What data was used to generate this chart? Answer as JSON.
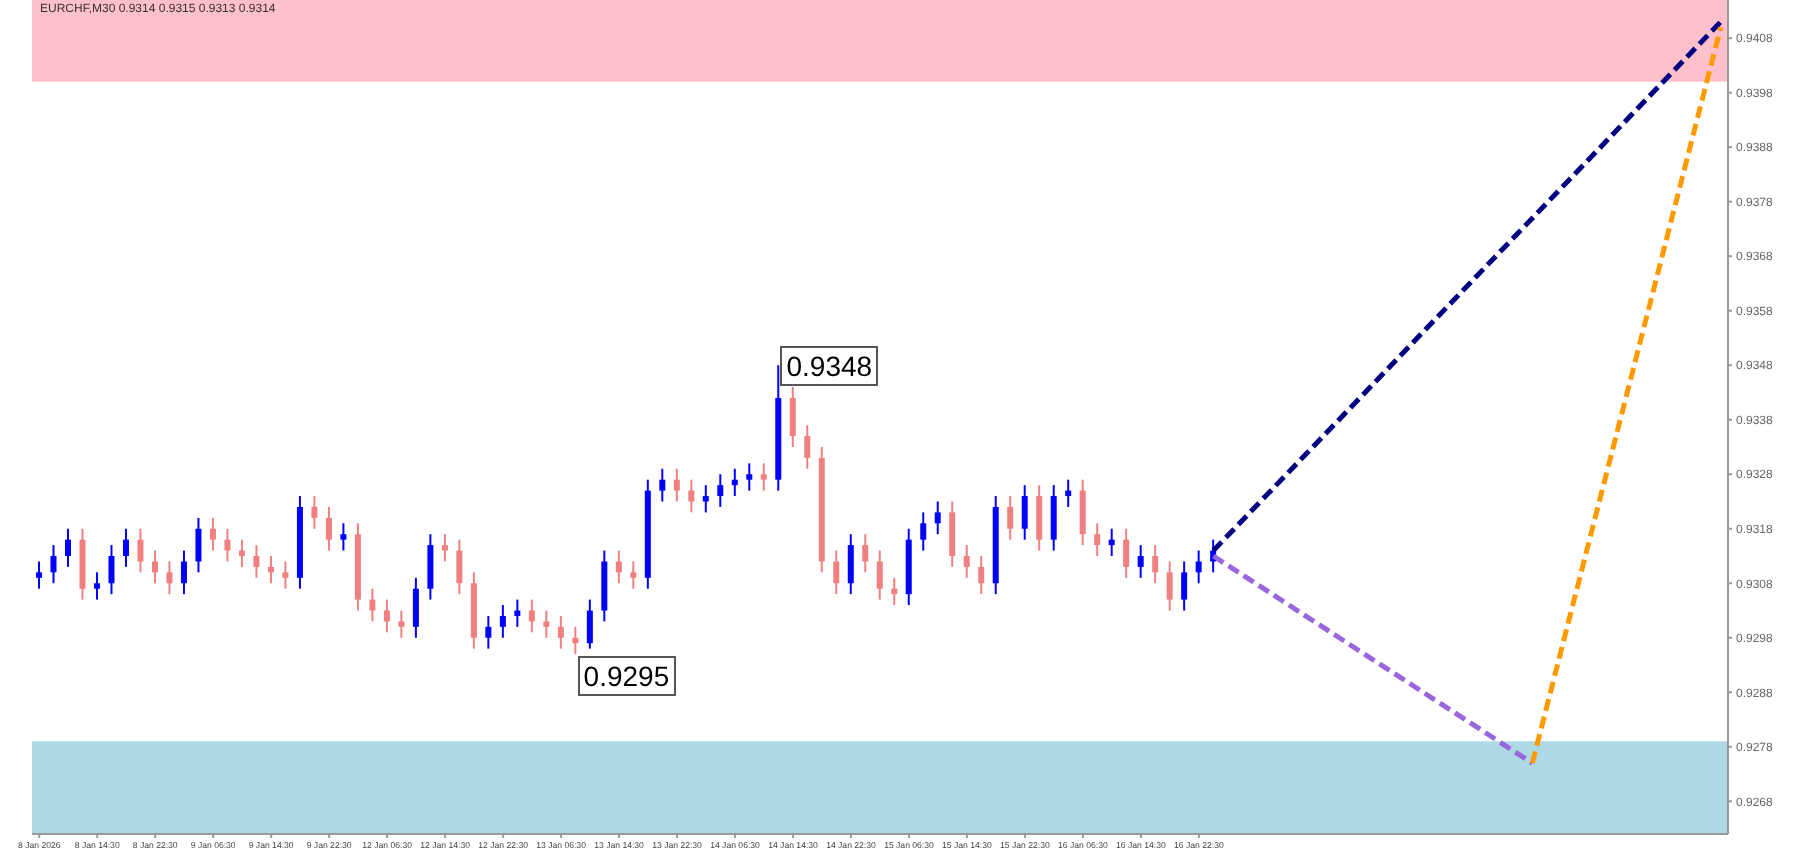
{
  "chart_data": {
    "type": "candlestick",
    "title": "EURCHF,M30  0.9314 0.9315 0.9313 0.9314",
    "categories": [
      "8 Jan 2026",
      null,
      null,
      null,
      "8 Jan 14:30",
      null,
      null,
      null,
      "8 Jan 22:30",
      null,
      null,
      null,
      "9 Jan 06:30",
      null,
      null,
      null,
      "9 Jan 14:30",
      null,
      null,
      null,
      "9 Jan 22:30",
      null,
      null,
      null,
      "12 Jan 06:30",
      null,
      null,
      null,
      "12 Jan 14:30",
      null,
      null,
      null,
      "12 Jan 22:30",
      null,
      null,
      null,
      "13 Jan 06:30",
      null,
      null,
      null,
      "13 Jan 14:30",
      null,
      null,
      null,
      "13 Jan 22:30",
      null,
      null,
      null,
      "14 Jan 06:30",
      null,
      null,
      null,
      "14 Jan 14:30",
      null,
      null,
      null,
      "14 Jan 22:30",
      null,
      null,
      null,
      "15 Jan 06:30",
      null,
      null,
      null,
      "15 Jan 14:30",
      null,
      null,
      null,
      "15 Jan 22:30",
      null,
      null,
      null,
      "16 Jan 06:30",
      null,
      null,
      null,
      "16 Jan 14:30",
      null,
      null,
      null,
      "16 Jan 22:30",
      null,
      null,
      null,
      null,
      null,
      null,
      null,
      null,
      null,
      null,
      null,
      null,
      null,
      null,
      null,
      null,
      null,
      null,
      null,
      null,
      null,
      null,
      null,
      null,
      null,
      null,
      null,
      null,
      null,
      null,
      null,
      null,
      null,
      null,
      null,
      null
    ],
    "ohlc": [
      [
        0.9309,
        0.9312,
        0.9307,
        0.931
      ],
      [
        0.931,
        0.9315,
        0.9308,
        0.9313
      ],
      [
        0.9313,
        0.9318,
        0.9311,
        0.9316
      ],
      [
        0.9316,
        0.9318,
        0.9305,
        0.9307
      ],
      [
        0.9307,
        0.931,
        0.9305,
        0.9308
      ],
      [
        0.9308,
        0.9315,
        0.9306,
        0.9313
      ],
      [
        0.9313,
        0.9318,
        0.9311,
        0.9316
      ],
      [
        0.9316,
        0.9318,
        0.931,
        0.9312
      ],
      [
        0.9312,
        0.9314,
        0.9308,
        0.931
      ],
      [
        0.931,
        0.9312,
        0.9306,
        0.9308
      ],
      [
        0.9308,
        0.9314,
        0.9306,
        0.9312
      ],
      [
        0.9312,
        0.932,
        0.931,
        0.9318
      ],
      [
        0.9318,
        0.932,
        0.9314,
        0.9316
      ],
      [
        0.9316,
        0.9318,
        0.9312,
        0.9314
      ],
      [
        0.9314,
        0.9316,
        0.9311,
        0.9313
      ],
      [
        0.9313,
        0.9315,
        0.9309,
        0.9311
      ],
      [
        0.9311,
        0.9313,
        0.9308,
        0.931
      ],
      [
        0.931,
        0.9312,
        0.9307,
        0.9309
      ],
      [
        0.9309,
        0.9324,
        0.9307,
        0.9322
      ],
      [
        0.9322,
        0.9324,
        0.9318,
        0.932
      ],
      [
        0.932,
        0.9322,
        0.9314,
        0.9316
      ],
      [
        0.9316,
        0.9319,
        0.9314,
        0.9317
      ],
      [
        0.9317,
        0.9319,
        0.9303,
        0.9305
      ],
      [
        0.9305,
        0.9307,
        0.9301,
        0.9303
      ],
      [
        0.9303,
        0.9305,
        0.9299,
        0.9301
      ],
      [
        0.9301,
        0.9303,
        0.9298,
        0.93
      ],
      [
        0.93,
        0.9309,
        0.9298,
        0.9307
      ],
      [
        0.9307,
        0.9317,
        0.9305,
        0.9315
      ],
      [
        0.9315,
        0.9317,
        0.9312,
        0.9314
      ],
      [
        0.9314,
        0.9316,
        0.9306,
        0.9308
      ],
      [
        0.9308,
        0.931,
        0.9296,
        0.9298
      ],
      [
        0.9298,
        0.9302,
        0.9296,
        0.93
      ],
      [
        0.93,
        0.9304,
        0.9298,
        0.9302
      ],
      [
        0.9302,
        0.9305,
        0.93,
        0.9303
      ],
      [
        0.9303,
        0.9305,
        0.9299,
        0.9301
      ],
      [
        0.9301,
        0.9303,
        0.9298,
        0.93
      ],
      [
        0.93,
        0.9302,
        0.9296,
        0.9298
      ],
      [
        0.9298,
        0.93,
        0.9295,
        0.9297
      ],
      [
        0.9297,
        0.9305,
        0.9296,
        0.9303
      ],
      [
        0.9303,
        0.9314,
        0.9301,
        0.9312
      ],
      [
        0.9312,
        0.9314,
        0.9308,
        0.931
      ],
      [
        0.931,
        0.9312,
        0.9307,
        0.9309
      ],
      [
        0.9309,
        0.9327,
        0.9307,
        0.9325
      ],
      [
        0.9325,
        0.9329,
        0.9323,
        0.9327
      ],
      [
        0.9327,
        0.9329,
        0.9323,
        0.9325
      ],
      [
        0.9325,
        0.9327,
        0.9321,
        0.9323
      ],
      [
        0.9323,
        0.9326,
        0.9321,
        0.9324
      ],
      [
        0.9324,
        0.9328,
        0.9322,
        0.9326
      ],
      [
        0.9326,
        0.9329,
        0.9324,
        0.9327
      ],
      [
        0.9327,
        0.933,
        0.9325,
        0.9328
      ],
      [
        0.9328,
        0.933,
        0.9325,
        0.9327
      ],
      [
        0.9327,
        0.9348,
        0.9325,
        0.9342
      ],
      [
        0.9342,
        0.9344,
        0.9333,
        0.9335
      ],
      [
        0.9335,
        0.9337,
        0.9329,
        0.9331
      ],
      [
        0.9331,
        0.9333,
        0.931,
        0.9312
      ],
      [
        0.9312,
        0.9314,
        0.9306,
        0.9308
      ],
      [
        0.9308,
        0.9317,
        0.9306,
        0.9315
      ],
      [
        0.9315,
        0.9317,
        0.931,
        0.9312
      ],
      [
        0.9312,
        0.9314,
        0.9305,
        0.9307
      ],
      [
        0.9307,
        0.9309,
        0.9304,
        0.9306
      ],
      [
        0.9306,
        0.9318,
        0.9304,
        0.9316
      ],
      [
        0.9316,
        0.9321,
        0.9314,
        0.9319
      ],
      [
        0.9319,
        0.9323,
        0.9317,
        0.9321
      ],
      [
        0.9321,
        0.9323,
        0.9311,
        0.9313
      ],
      [
        0.9313,
        0.9315,
        0.9309,
        0.9311
      ],
      [
        0.9311,
        0.9313,
        0.9306,
        0.9308
      ],
      [
        0.9308,
        0.9324,
        0.9306,
        0.9322
      ],
      [
        0.9322,
        0.9324,
        0.9316,
        0.9318
      ],
      [
        0.9318,
        0.9326,
        0.9316,
        0.9324
      ],
      [
        0.9324,
        0.9326,
        0.9314,
        0.9316
      ],
      [
        0.9316,
        0.9326,
        0.9314,
        0.9324
      ],
      [
        0.9324,
        0.9327,
        0.9322,
        0.9325
      ],
      [
        0.9325,
        0.9327,
        0.9315,
        0.9317
      ],
      [
        0.9317,
        0.9319,
        0.9313,
        0.9315
      ],
      [
        0.9315,
        0.9318,
        0.9313,
        0.9316
      ],
      [
        0.9316,
        0.9318,
        0.9309,
        0.9311
      ],
      [
        0.9311,
        0.9315,
        0.9309,
        0.9313
      ],
      [
        0.9313,
        0.9315,
        0.9308,
        0.931
      ],
      [
        0.931,
        0.9312,
        0.9303,
        0.9305
      ],
      [
        0.9305,
        0.9312,
        0.9303,
        0.931
      ],
      [
        0.931,
        0.9314,
        0.9308,
        0.9312
      ],
      [
        0.9312,
        0.9316,
        0.931,
        0.9314
      ],
      null,
      null,
      null,
      null,
      null,
      null,
      null,
      null,
      null,
      null,
      null,
      null,
      null,
      null,
      null,
      null,
      null,
      null,
      null,
      null,
      null,
      null,
      null,
      null,
      null,
      null,
      null,
      null,
      null,
      null,
      null,
      null,
      null,
      null,
      null
    ],
    "colors": [
      "#0000ff",
      "#0000ff",
      "#0000ff",
      "#f08080",
      "#0000ff",
      "#0000ff",
      "#0000ff",
      "#f08080",
      "#f08080",
      "#f08080",
      "#0000ff",
      "#0000ff",
      "#f08080",
      "#f08080",
      "#f08080",
      "#f08080",
      "#f08080",
      "#f08080",
      "#0000ff",
      "#f08080",
      "#f08080",
      "#0000ff",
      "#f08080",
      "#f08080",
      "#f08080",
      "#f08080",
      "#0000ff",
      "#0000ff",
      "#f08080",
      "#f08080",
      "#f08080",
      "#0000ff",
      "#0000ff",
      "#0000ff",
      "#f08080",
      "#f08080",
      "#f08080",
      "#f08080",
      "#0000ff",
      "#0000ff",
      "#f08080",
      "#f08080",
      "#0000ff",
      "#0000ff",
      "#f08080",
      "#f08080",
      "#0000ff",
      "#0000ff",
      "#0000ff",
      "#0000ff",
      "#f08080",
      "#0000ff",
      "#f08080",
      "#f08080",
      "#f08080",
      "#f08080",
      "#0000ff",
      "#f08080",
      "#f08080",
      "#f08080",
      "#0000ff",
      "#0000ff",
      "#0000ff",
      "#f08080",
      "#f08080",
      "#f08080",
      "#0000ff",
      "#f08080",
      "#0000ff",
      "#f08080",
      "#0000ff",
      "#0000ff",
      "#f08080",
      "#f08080",
      "#0000ff",
      "#f08080",
      "#0000ff",
      "#f08080",
      "#f08080",
      "#0000ff",
      "#0000ff",
      "#0000ff",
      null,
      null,
      null,
      null,
      null,
      null,
      null,
      null,
      null,
      null,
      null,
      null,
      null,
      null,
      null,
      null,
      null,
      null,
      null,
      null,
      null,
      null,
      null,
      null,
      null,
      null,
      null,
      null,
      null,
      null,
      null,
      null,
      null,
      null,
      null
    ],
    "series": [
      {
        "type": "line",
        "color": "#000080",
        "line_style": "dashed",
        "values": [
          null,
          null,
          null,
          null,
          null,
          null,
          null,
          null,
          null,
          null,
          null,
          null,
          null,
          null,
          null,
          null,
          null,
          null,
          null,
          null,
          null,
          null,
          null,
          null,
          null,
          null,
          null,
          null,
          null,
          null,
          null,
          null,
          null,
          null,
          null,
          null,
          null,
          null,
          null,
          null,
          null,
          null,
          null,
          null,
          null,
          null,
          null,
          null,
          null,
          null,
          null,
          null,
          null,
          null,
          null,
          null,
          null,
          null,
          null,
          null,
          null,
          null,
          null,
          null,
          null,
          null,
          null,
          null,
          null,
          null,
          null,
          null,
          null,
          null,
          null,
          null,
          null,
          null,
          null,
          null,
          null,
          0.9314,
          null,
          null,
          null,
          null,
          null,
          null,
          null,
          null,
          null,
          null,
          null,
          null,
          null,
          null,
          null,
          null,
          null,
          null,
          null,
          null,
          null,
          null,
          null,
          null,
          null,
          null,
          null,
          null,
          null,
          null,
          null,
          null,
          null,
          null,
          0.9411
        ]
      },
      {
        "type": "line",
        "color": "#9966dd",
        "line_style": "dashed",
        "values": [
          null,
          null,
          null,
          null,
          null,
          null,
          null,
          null,
          null,
          null,
          null,
          null,
          null,
          null,
          null,
          null,
          null,
          null,
          null,
          null,
          null,
          null,
          null,
          null,
          null,
          null,
          null,
          null,
          null,
          null,
          null,
          null,
          null,
          null,
          null,
          null,
          null,
          null,
          null,
          null,
          null,
          null,
          null,
          null,
          null,
          null,
          null,
          null,
          null,
          null,
          null,
          null,
          null,
          null,
          null,
          null,
          null,
          null,
          null,
          null,
          null,
          null,
          null,
          null,
          null,
          null,
          null,
          null,
          null,
          null,
          null,
          null,
          null,
          null,
          null,
          null,
          null,
          null,
          null,
          null,
          null,
          0.9313,
          null,
          null,
          null,
          null,
          null,
          null,
          null,
          null,
          null,
          null,
          null,
          null,
          null,
          null,
          null,
          null,
          null,
          null,
          null,
          null,
          null,
          0.9275,
          null,
          null,
          null,
          null,
          null,
          null,
          null,
          null,
          null,
          null,
          null,
          null,
          null
        ]
      },
      {
        "type": "line",
        "color": "#ff9900",
        "line_style": "dashed",
        "values": [
          null,
          null,
          null,
          null,
          null,
          null,
          null,
          null,
          null,
          null,
          null,
          null,
          null,
          null,
          null,
          null,
          null,
          null,
          null,
          null,
          null,
          null,
          null,
          null,
          null,
          null,
          null,
          null,
          null,
          null,
          null,
          null,
          null,
          null,
          null,
          null,
          null,
          null,
          null,
          null,
          null,
          null,
          null,
          null,
          null,
          null,
          null,
          null,
          null,
          null,
          null,
          null,
          null,
          null,
          null,
          null,
          null,
          null,
          null,
          null,
          null,
          null,
          null,
          null,
          null,
          null,
          null,
          null,
          null,
          null,
          null,
          null,
          null,
          null,
          null,
          null,
          null,
          null,
          null,
          null,
          null,
          null,
          null,
          null,
          null,
          null,
          null,
          null,
          null,
          null,
          null,
          null,
          null,
          null,
          null,
          null,
          null,
          null,
          null,
          null,
          null,
          null,
          null,
          0.9275,
          null,
          null,
          null,
          null,
          null,
          null,
          null,
          null,
          null,
          null,
          null,
          null,
          0.941
        ]
      }
    ],
    "bands": [
      {
        "axis": "y",
        "from": 0.94,
        "to": 0.9415,
        "color": "#ffc0cb"
      },
      {
        "axis": "y",
        "from": 0.9262,
        "to": 0.9279,
        "color": "#add8e6"
      }
    ],
    "annotations": [
      "0.9348",
      "0.9295"
    ],
    "ylim": [
      0.9262,
      0.9415
    ],
    "yticks": [
      0.9268,
      0.9278,
      0.9288,
      0.9298,
      0.9308,
      0.9318,
      0.9328,
      0.9338,
      0.9348,
      0.9358,
      0.9368,
      0.9378,
      0.9388,
      0.9398,
      0.9408
    ],
    "grid": false
  }
}
